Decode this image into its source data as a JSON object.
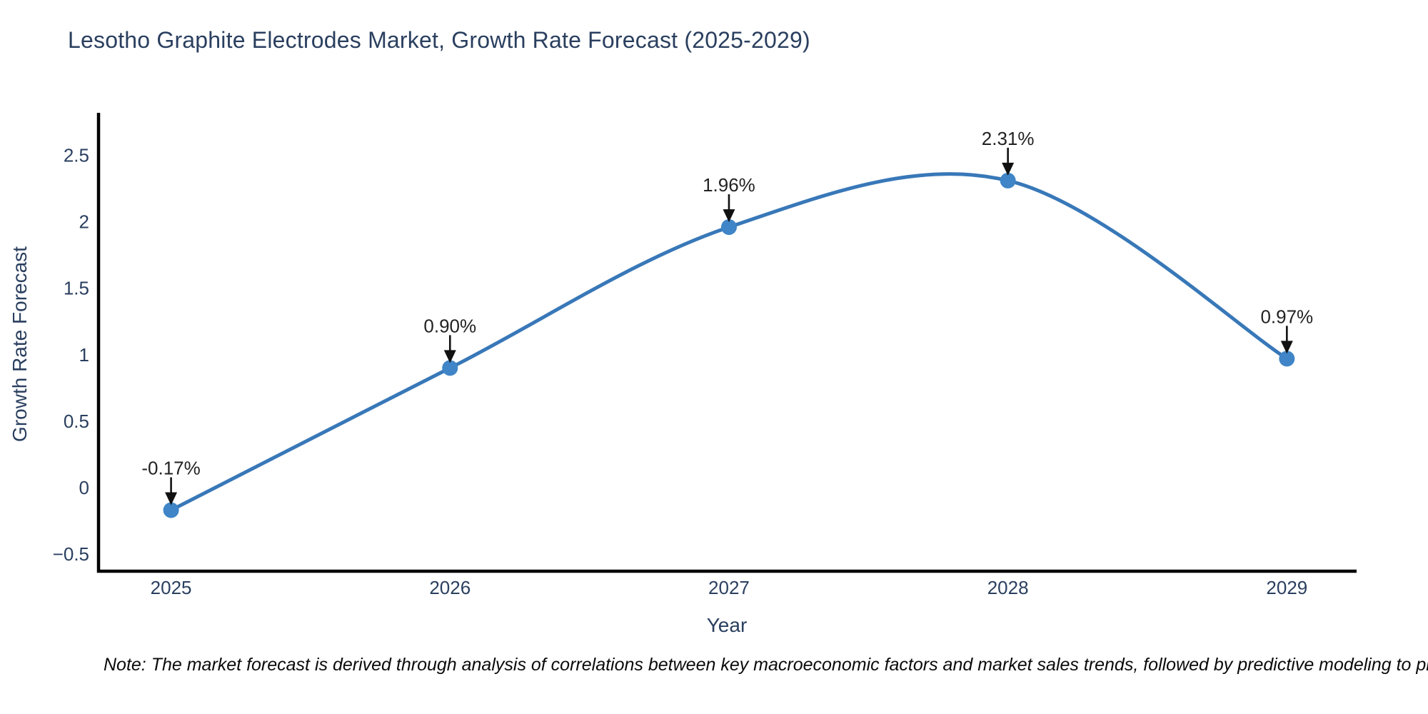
{
  "title": {
    "text": "Lesotho Graphite Electrodes Market, Growth Rate Forecast (2025-2029)"
  },
  "x_axis": {
    "title": "Year",
    "tick_labels": [
      "2025",
      "2026",
      "2027",
      "2028",
      "2029"
    ],
    "tick_values": [
      2025,
      2026,
      2027,
      2028,
      2029
    ]
  },
  "y_axis": {
    "title": "Growth Rate Forecast",
    "tick_labels": [
      "2.5",
      "2",
      "1.5",
      "1",
      "0.5",
      "0",
      "−0.5"
    ],
    "tick_values": [
      2.5,
      2,
      1.5,
      1,
      0.5,
      0,
      -0.5
    ]
  },
  "note": {
    "text": "Note: The market forecast is derived through analysis of correlations between key macroeconomic factors and market sales trends, followed by predictive modeling to project future sa"
  },
  "colors": {
    "title_text": "#2a3f5f",
    "tick_text": "#2a3f5f",
    "annotation_text": "#222222",
    "axis_line": "#000000",
    "trend_line": "#3878b8",
    "marker_fill": "#3f85c7",
    "arrow": "#111111",
    "background": "#ffffff"
  },
  "chart_data": {
    "type": "line",
    "line_shape": "spline",
    "markers": true,
    "grid": false,
    "legend": false,
    "title": "Lesotho Graphite Electrodes Market, Growth Rate Forecast (2025-2029)",
    "xlabel": "Year",
    "ylabel": "Growth Rate Forecast",
    "x": [
      2025,
      2026,
      2027,
      2028,
      2029
    ],
    "series": [
      {
        "name": "Growth Rate Forecast",
        "values": [
          -0.17,
          0.9,
          1.96,
          2.31,
          0.97
        ]
      }
    ],
    "point_labels": [
      "-0.17%",
      "0.90%",
      "1.96%",
      "2.31%",
      "0.97%"
    ],
    "point_label_arrows": true,
    "xlim": [
      2024.74,
      2029.25
    ],
    "ylim": [
      -0.64,
      2.82
    ],
    "yticks": [
      -0.5,
      0,
      0.5,
      1,
      1.5,
      2,
      2.5
    ],
    "xticks": [
      2025,
      2026,
      2027,
      2028,
      2029
    ],
    "footnote": "Note: The market forecast is derived through analysis of correlations between key macroeconomic factors and market sales trends, followed by predictive modeling to project future sa"
  }
}
